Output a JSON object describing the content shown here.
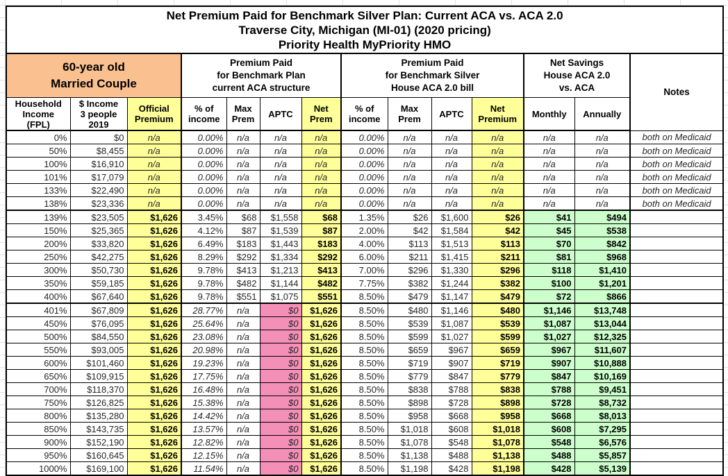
{
  "table": {
    "title": {
      "line1": "Net Premium Paid for Benchmark Silver Plan: Current ACA vs. ACA 2.0",
      "line2": "Traverse City, Michigan (MI-01) (2020 pricing)",
      "line3": "Priority Health MyPriority HMO"
    },
    "groups": {
      "profile": "60-year old\nMarried Couple",
      "aca": "Premium Paid\nfor Benchmark Plan\ncurrent ACA structure",
      "aca2": "Premium Paid\nfor Benchmark Silver\nHouse ACA 2.0 bill",
      "savings": "Net Savings\nHouse ACA 2.0\nvs. ACA",
      "notes": "Notes"
    },
    "columns": [
      "Household\nIncome\n(FPL)",
      "$ Income\n3 people\n2019",
      "Official\nPremium",
      "% of\nincome",
      "Max\nPrem",
      "APTC",
      "Net\nPrem",
      "% of\nincome",
      "Max\nPrem",
      "APTC",
      "Net\nPremium",
      "Monthly",
      "Annually"
    ],
    "colors": {
      "header_orange": "#FAC090",
      "highlight_yellow": "#FFFF99",
      "savings_green": "#CCFFCC",
      "zero_aptc_pink": "#F48FB8",
      "border_black": "#000000"
    },
    "rows": [
      {
        "type": "medicaid",
        "fpl": "0%",
        "income": "$0",
        "official": "n/a",
        "aca_pct": "0.00%",
        "aca_max": "n/a",
        "aca_aptc": "n/a",
        "aca_net": "n/a",
        "h_pct": "0.00%",
        "h_max": "n/a",
        "h_aptc": "n/a",
        "h_net": "n/a",
        "monthly": "n/a",
        "annually": "n/a",
        "notes": "both on Medicaid"
      },
      {
        "type": "medicaid",
        "fpl": "50%",
        "income": "$8,455",
        "official": "n/a",
        "aca_pct": "0.00%",
        "aca_max": "n/a",
        "aca_aptc": "n/a",
        "aca_net": "n/a",
        "h_pct": "0.00%",
        "h_max": "n/a",
        "h_aptc": "n/a",
        "h_net": "n/a",
        "monthly": "n/a",
        "annually": "n/a",
        "notes": "both on Medicaid"
      },
      {
        "type": "medicaid",
        "fpl": "100%",
        "income": "$16,910",
        "official": "n/a",
        "aca_pct": "0.00%",
        "aca_max": "n/a",
        "aca_aptc": "n/a",
        "aca_net": "n/a",
        "h_pct": "0.00%",
        "h_max": "n/a",
        "h_aptc": "n/a",
        "h_net": "n/a",
        "monthly": "n/a",
        "annually": "n/a",
        "notes": "both on Medicaid"
      },
      {
        "type": "medicaid",
        "fpl": "101%",
        "income": "$17,079",
        "official": "n/a",
        "aca_pct": "0.00%",
        "aca_max": "n/a",
        "aca_aptc": "n/a",
        "aca_net": "n/a",
        "h_pct": "0.00%",
        "h_max": "n/a",
        "h_aptc": "n/a",
        "h_net": "n/a",
        "monthly": "n/a",
        "annually": "n/a",
        "notes": "both on Medicaid"
      },
      {
        "type": "medicaid",
        "fpl": "133%",
        "income": "$22,490",
        "official": "n/a",
        "aca_pct": "0.00%",
        "aca_max": "n/a",
        "aca_aptc": "n/a",
        "aca_net": "n/a",
        "h_pct": "0.00%",
        "h_max": "n/a",
        "h_aptc": "n/a",
        "h_net": "n/a",
        "monthly": "n/a",
        "annually": "n/a",
        "notes": "both on Medicaid"
      },
      {
        "type": "medicaid",
        "sep": true,
        "fpl": "138%",
        "income": "$23,336",
        "official": "n/a",
        "aca_pct": "0.00%",
        "aca_max": "n/a",
        "aca_aptc": "n/a",
        "aca_net": "n/a",
        "h_pct": "0.00%",
        "h_max": "n/a",
        "h_aptc": "n/a",
        "h_net": "n/a",
        "monthly": "n/a",
        "annually": "n/a",
        "notes": "both on Medicaid"
      },
      {
        "type": "subsidy",
        "fpl": "139%",
        "income": "$23,505",
        "official": "$1,626",
        "aca_pct": "3.45%",
        "aca_max": "$68",
        "aca_aptc": "$1,558",
        "aca_net": "$68",
        "h_pct": "1.35%",
        "h_max": "$26",
        "h_aptc": "$1,600",
        "h_net": "$26",
        "monthly": "$41",
        "annually": "$494",
        "notes": ""
      },
      {
        "type": "subsidy",
        "fpl": "150%",
        "income": "$25,365",
        "official": "$1,626",
        "aca_pct": "4.12%",
        "aca_max": "$87",
        "aca_aptc": "$1,539",
        "aca_net": "$87",
        "h_pct": "2.00%",
        "h_max": "$42",
        "h_aptc": "$1,584",
        "h_net": "$42",
        "monthly": "$45",
        "annually": "$538",
        "notes": ""
      },
      {
        "type": "subsidy",
        "fpl": "200%",
        "income": "$33,820",
        "official": "$1,626",
        "aca_pct": "6.49%",
        "aca_max": "$183",
        "aca_aptc": "$1,443",
        "aca_net": "$183",
        "h_pct": "4.00%",
        "h_max": "$113",
        "h_aptc": "$1,513",
        "h_net": "$113",
        "monthly": "$70",
        "annually": "$842",
        "notes": ""
      },
      {
        "type": "subsidy",
        "fpl": "250%",
        "income": "$42,275",
        "official": "$1,626",
        "aca_pct": "8.29%",
        "aca_max": "$292",
        "aca_aptc": "$1,334",
        "aca_net": "$292",
        "h_pct": "6.00%",
        "h_max": "$211",
        "h_aptc": "$1,415",
        "h_net": "$211",
        "monthly": "$81",
        "annually": "$968",
        "notes": ""
      },
      {
        "type": "subsidy",
        "fpl": "300%",
        "income": "$50,730",
        "official": "$1,626",
        "aca_pct": "9.78%",
        "aca_max": "$413",
        "aca_aptc": "$1,213",
        "aca_net": "$413",
        "h_pct": "7.00%",
        "h_max": "$296",
        "h_aptc": "$1,330",
        "h_net": "$296",
        "monthly": "$118",
        "annually": "$1,410",
        "notes": ""
      },
      {
        "type": "subsidy",
        "fpl": "350%",
        "income": "$59,185",
        "official": "$1,626",
        "aca_pct": "9.78%",
        "aca_max": "$482",
        "aca_aptc": "$1,144",
        "aca_net": "$482",
        "h_pct": "7.75%",
        "h_max": "$382",
        "h_aptc": "$1,244",
        "h_net": "$382",
        "monthly": "$100",
        "annually": "$1,201",
        "notes": ""
      },
      {
        "type": "subsidy",
        "sep": true,
        "fpl": "400%",
        "income": "$67,640",
        "official": "$1,626",
        "aca_pct": "9.78%",
        "aca_max": "$551",
        "aca_aptc": "$1,075",
        "aca_net": "$551",
        "h_pct": "8.50%",
        "h_max": "$479",
        "h_aptc": "$1,147",
        "h_net": "$479",
        "monthly": "$72",
        "annually": "$866",
        "notes": ""
      },
      {
        "type": "cliff",
        "fpl": "401%",
        "income": "$67,809",
        "official": "$1,626",
        "aca_pct": "28.77%",
        "aca_max": "n/a",
        "aca_aptc": "$0",
        "aca_net": "$1,626",
        "h_pct": "8.50%",
        "h_max": "$480",
        "h_aptc": "$1,146",
        "h_net": "$480",
        "monthly": "$1,146",
        "annually": "$13,748",
        "notes": ""
      },
      {
        "type": "cliff",
        "fpl": "450%",
        "income": "$76,095",
        "official": "$1,626",
        "aca_pct": "25.64%",
        "aca_max": "n/a",
        "aca_aptc": "$0",
        "aca_net": "$1,626",
        "h_pct": "8.50%",
        "h_max": "$539",
        "h_aptc": "$1,087",
        "h_net": "$539",
        "monthly": "$1,087",
        "annually": "$13,044",
        "notes": ""
      },
      {
        "type": "cliff",
        "fpl": "500%",
        "income": "$84,550",
        "official": "$1,626",
        "aca_pct": "23.08%",
        "aca_max": "n/a",
        "aca_aptc": "$0",
        "aca_net": "$1,626",
        "h_pct": "8.50%",
        "h_max": "$599",
        "h_aptc": "$1,027",
        "h_net": "$599",
        "monthly": "$1,027",
        "annually": "$12,325",
        "notes": ""
      },
      {
        "type": "cliff",
        "fpl": "550%",
        "income": "$93,005",
        "official": "$1,626",
        "aca_pct": "20.98%",
        "aca_max": "n/a",
        "aca_aptc": "$0",
        "aca_net": "$1,626",
        "h_pct": "8.50%",
        "h_max": "$659",
        "h_aptc": "$967",
        "h_net": "$659",
        "monthly": "$967",
        "annually": "$11,607",
        "notes": ""
      },
      {
        "type": "cliff",
        "fpl": "600%",
        "income": "$101,460",
        "official": "$1,626",
        "aca_pct": "19.23%",
        "aca_max": "n/a",
        "aca_aptc": "$0",
        "aca_net": "$1,626",
        "h_pct": "8.50%",
        "h_max": "$719",
        "h_aptc": "$907",
        "h_net": "$719",
        "monthly": "$907",
        "annually": "$10,888",
        "notes": ""
      },
      {
        "type": "cliff",
        "fpl": "650%",
        "income": "$109,915",
        "official": "$1,626",
        "aca_pct": "17.75%",
        "aca_max": "n/a",
        "aca_aptc": "$0",
        "aca_net": "$1,626",
        "h_pct": "8.50%",
        "h_max": "$779",
        "h_aptc": "$847",
        "h_net": "$779",
        "monthly": "$847",
        "annually": "$10,169",
        "notes": ""
      },
      {
        "type": "cliff",
        "fpl": "700%",
        "income": "$118,370",
        "official": "$1,626",
        "aca_pct": "16.48%",
        "aca_max": "n/a",
        "aca_aptc": "$0",
        "aca_net": "$1,626",
        "h_pct": "8.50%",
        "h_max": "$838",
        "h_aptc": "$788",
        "h_net": "$838",
        "monthly": "$788",
        "annually": "$9,451",
        "notes": ""
      },
      {
        "type": "cliff",
        "fpl": "750%",
        "income": "$126,825",
        "official": "$1,626",
        "aca_pct": "15.38%",
        "aca_max": "n/a",
        "aca_aptc": "$0",
        "aca_net": "$1,626",
        "h_pct": "8.50%",
        "h_max": "$898",
        "h_aptc": "$728",
        "h_net": "$898",
        "monthly": "$728",
        "annually": "$8,732",
        "notes": ""
      },
      {
        "type": "cliff",
        "fpl": "800%",
        "income": "$135,280",
        "official": "$1,626",
        "aca_pct": "14.42%",
        "aca_max": "n/a",
        "aca_aptc": "$0",
        "aca_net": "$1,626",
        "h_pct": "8.50%",
        "h_max": "$958",
        "h_aptc": "$668",
        "h_net": "$958",
        "monthly": "$668",
        "annually": "$8,013",
        "notes": ""
      },
      {
        "type": "cliff",
        "fpl": "850%",
        "income": "$143,735",
        "official": "$1,626",
        "aca_pct": "13.57%",
        "aca_max": "n/a",
        "aca_aptc": "$0",
        "aca_net": "$1,626",
        "h_pct": "8.50%",
        "h_max": "$1,018",
        "h_aptc": "$608",
        "h_net": "$1,018",
        "monthly": "$608",
        "annually": "$7,295",
        "notes": ""
      },
      {
        "type": "cliff",
        "fpl": "900%",
        "income": "$152,190",
        "official": "$1,626",
        "aca_pct": "12.82%",
        "aca_max": "n/a",
        "aca_aptc": "$0",
        "aca_net": "$1,626",
        "h_pct": "8.50%",
        "h_max": "$1,078",
        "h_aptc": "$548",
        "h_net": "$1,078",
        "monthly": "$548",
        "annually": "$6,576",
        "notes": ""
      },
      {
        "type": "cliff",
        "fpl": "950%",
        "income": "$160,645",
        "official": "$1,626",
        "aca_pct": "12.15%",
        "aca_max": "n/a",
        "aca_aptc": "$0",
        "aca_net": "$1,626",
        "h_pct": "8.50%",
        "h_max": "$1,138",
        "h_aptc": "$488",
        "h_net": "$1,138",
        "monthly": "$488",
        "annually": "$5,857",
        "notes": ""
      },
      {
        "type": "cliff",
        "fpl": "1000%",
        "income": "$169,100",
        "official": "$1,626",
        "aca_pct": "11.54%",
        "aca_max": "n/a",
        "aca_aptc": "$0",
        "aca_net": "$1,626",
        "h_pct": "8.50%",
        "h_max": "$1,198",
        "h_aptc": "$428",
        "h_net": "$1,198",
        "monthly": "$428",
        "annually": "$5,139",
        "notes": ""
      }
    ]
  }
}
